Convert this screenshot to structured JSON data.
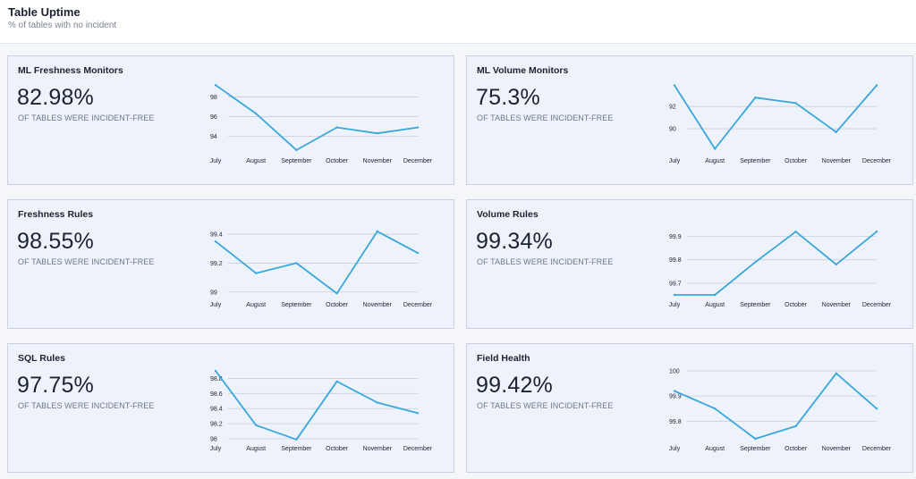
{
  "header": {
    "title": "Table Uptime",
    "subtitle": "% of tables with no incident"
  },
  "colors": {
    "line": "#3aa7dc",
    "grid": "#c9ced8",
    "panel_bg": "#eef2fb"
  },
  "categories": [
    "July",
    "August",
    "September",
    "October",
    "November",
    "December"
  ],
  "panels": [
    {
      "title": "ML Freshness Monitors",
      "value": "82.98%",
      "caption": "OF TABLES WERE INCIDENT-FREE",
      "chart_data": {
        "type": "line",
        "x": [
          "July",
          "August",
          "September",
          "October",
          "November",
          "December"
        ],
        "yticks": [
          "98",
          "96",
          "94"
        ],
        "ylim": [
          92.5,
          99.4
        ],
        "values": [
          99.2,
          96.3,
          92.6,
          94.9,
          94.3,
          94.9
        ]
      }
    },
    {
      "title": "ML Volume Monitors",
      "value": "75.3%",
      "caption": "OF TABLES WERE INCIDENT-FREE",
      "chart_data": {
        "type": "line",
        "x": [
          "July",
          "August",
          "September",
          "October",
          "November",
          "December"
        ],
        "yticks": [
          "92",
          "90"
        ],
        "ylim": [
          88.0,
          94.1
        ],
        "values": [
          93.9,
          88.2,
          92.8,
          92.3,
          89.7,
          93.9
        ]
      }
    },
    {
      "title": "Freshness Rules",
      "value": "98.55%",
      "caption": "OF TABLES WERE INCIDENT-FREE",
      "chart_data": {
        "type": "line",
        "x": [
          "July",
          "August",
          "September",
          "October",
          "November",
          "December"
        ],
        "yticks": [
          "99.4",
          "99.2",
          "99"
        ],
        "ylim": [
          98.98,
          99.45
        ],
        "values": [
          99.35,
          99.13,
          99.2,
          98.99,
          99.42,
          99.27
        ]
      }
    },
    {
      "title": "Volume Rules",
      "value": "99.34%",
      "caption": "OF TABLES WERE INCIDENT-FREE",
      "chart_data": {
        "type": "line",
        "x": [
          "July",
          "August",
          "September",
          "October",
          "November",
          "December"
        ],
        "yticks": [
          "99.9",
          "99.8",
          "99.7"
        ],
        "ylim": [
          99.65,
          99.94
        ],
        "values": [
          99.65,
          99.65,
          99.79,
          99.92,
          99.78,
          99.92
        ]
      }
    },
    {
      "title": "SQL Rules",
      "value": "97.75%",
      "caption": "OF TABLES WERE INCIDENT-FREE",
      "chart_data": {
        "type": "line",
        "x": [
          "July",
          "August",
          "September",
          "October",
          "November",
          "December"
        ],
        "yticks": [
          "98.8",
          "98.6",
          "98.4",
          "98.2",
          "98"
        ],
        "ylim": [
          98.0,
          98.9
        ],
        "values": [
          98.9,
          98.18,
          97.99,
          98.76,
          98.48,
          98.34
        ]
      }
    },
    {
      "title": "Field Health",
      "value": "99.42%",
      "caption": "OF TABLES WERE INCIDENT-FREE",
      "chart_data": {
        "type": "line",
        "x": [
          "July",
          "August",
          "September",
          "October",
          "November",
          "December"
        ],
        "yticks": [
          "100",
          "99.9",
          "99.8"
        ],
        "ylim": [
          99.73,
          100.0
        ],
        "values": [
          99.92,
          99.85,
          99.73,
          99.78,
          99.99,
          99.85
        ]
      }
    }
  ]
}
